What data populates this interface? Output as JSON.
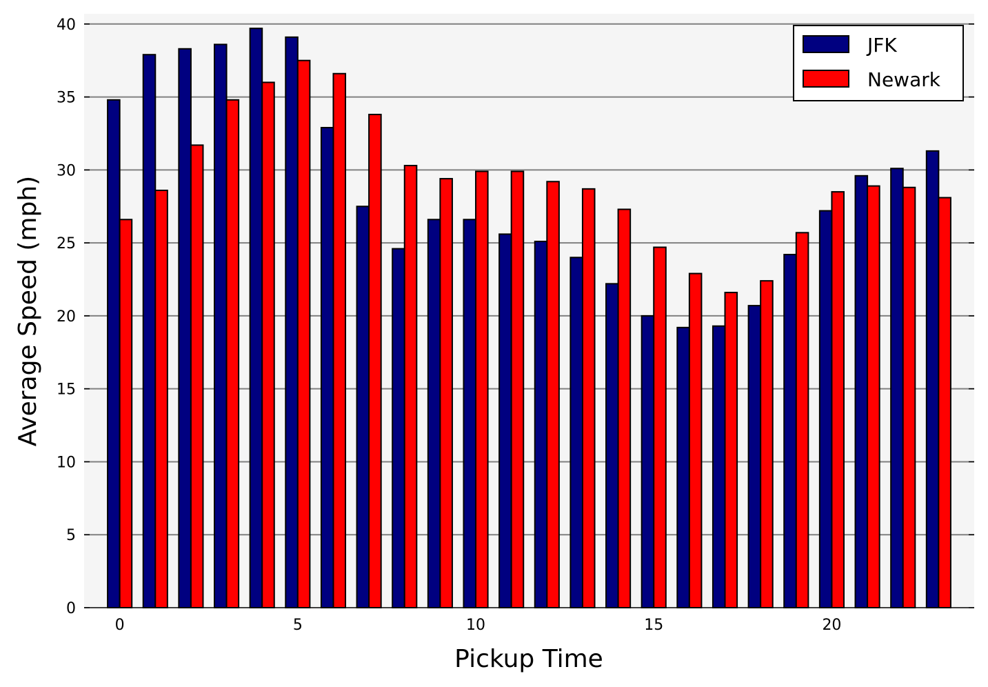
{
  "chart_data": {
    "type": "bar",
    "title": "",
    "xlabel": "Pickup Time",
    "ylabel": "Average Speed (mph)",
    "x": [
      0,
      1,
      2,
      3,
      4,
      5,
      6,
      7,
      8,
      9,
      10,
      11,
      12,
      13,
      14,
      15,
      16,
      17,
      18,
      19,
      20,
      21,
      22,
      23
    ],
    "xticks": [
      0,
      5,
      10,
      15,
      20
    ],
    "yticks": [
      0,
      5,
      10,
      15,
      20,
      25,
      30,
      35,
      40
    ],
    "xlim": [
      -1,
      24
    ],
    "ylim": [
      0,
      40.7
    ],
    "grid": "horizontal",
    "legend_position": "top-right",
    "series": [
      {
        "name": "JFK",
        "color": "#000080",
        "values": [
          34.8,
          37.9,
          38.3,
          38.6,
          39.7,
          39.1,
          32.9,
          27.5,
          24.6,
          26.6,
          26.6,
          25.6,
          25.1,
          24.0,
          22.2,
          20.0,
          19.2,
          19.3,
          20.7,
          24.2,
          27.2,
          29.6,
          30.1,
          31.3
        ]
      },
      {
        "name": "Newark",
        "color": "#ff0000",
        "values": [
          26.6,
          28.6,
          31.7,
          34.8,
          36.0,
          37.5,
          36.6,
          33.8,
          30.3,
          29.4,
          29.9,
          29.9,
          29.2,
          28.7,
          27.3,
          24.7,
          22.9,
          21.6,
          22.4,
          25.7,
          28.5,
          28.9,
          28.8,
          28.1
        ]
      }
    ],
    "colors": {
      "plot_background": "#f5f5f5",
      "grid": "#808080",
      "bar_edge": "#000000"
    }
  }
}
